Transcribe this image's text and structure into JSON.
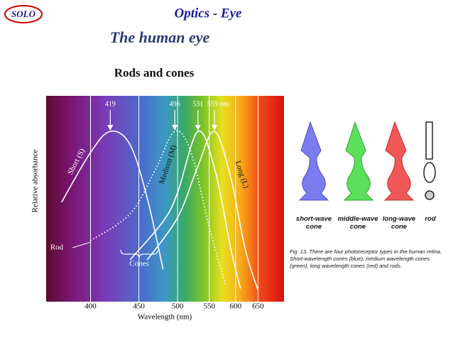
{
  "header": {
    "logo": "SOLO",
    "title": "Optics - Eye",
    "subtitle": "The human eye"
  },
  "chart_data": {
    "type": "line",
    "title": "Rods and cones",
    "x_label": "Wavelength (nm)",
    "y_label": "Relative absorbance",
    "xscale": "reciprocal",
    "xlim": [
      363,
      720
    ],
    "xticks": [
      400,
      450,
      500,
      550,
      600,
      650
    ],
    "ylim": [
      0,
      1
    ],
    "grid": true,
    "peaks": [
      419,
      496,
      531,
      {
        "value": 559,
        "label": "559 nm"
      }
    ],
    "series": [
      {
        "name": "Short (S)",
        "color": "#ffffff",
        "style": "solid",
        "x": [
          375,
          400,
          419,
          440,
          460,
          480
        ],
        "values": [
          0.5,
          0.76,
          0.87,
          0.8,
          0.52,
          0.15
        ]
      },
      {
        "name": "Rod",
        "color": "#ffffff",
        "style": "dotted",
        "x": [
          400,
          440,
          470,
          496,
          520,
          550,
          580
        ],
        "values": [
          0.3,
          0.44,
          0.67,
          0.87,
          0.76,
          0.37,
          0.07
        ]
      },
      {
        "name": "Medium (M)",
        "color": "#ffffff",
        "style": "solid",
        "x": [
          440,
          480,
          500,
          531,
          560,
          590,
          610
        ],
        "values": [
          0.2,
          0.4,
          0.55,
          0.87,
          0.67,
          0.26,
          0.05
        ]
      },
      {
        "name": "Long (L)",
        "color": "#ffffff",
        "style": "solid",
        "x": [
          460,
          500,
          530,
          559,
          590,
          620,
          650
        ],
        "values": [
          0.2,
          0.42,
          0.68,
          0.87,
          0.63,
          0.26,
          0.04
        ]
      }
    ],
    "group_label": "Cones"
  },
  "cones": {
    "labels": [
      "short-wave cone",
      "middle-wave cone",
      "long-wave cone",
      "rod"
    ],
    "caption": "Fig. 13. There are four photoreceptor types in the human retina. Short-wavelength cones (blue), medium wavelength cones (green), long wavelength cones (red) and rods."
  }
}
